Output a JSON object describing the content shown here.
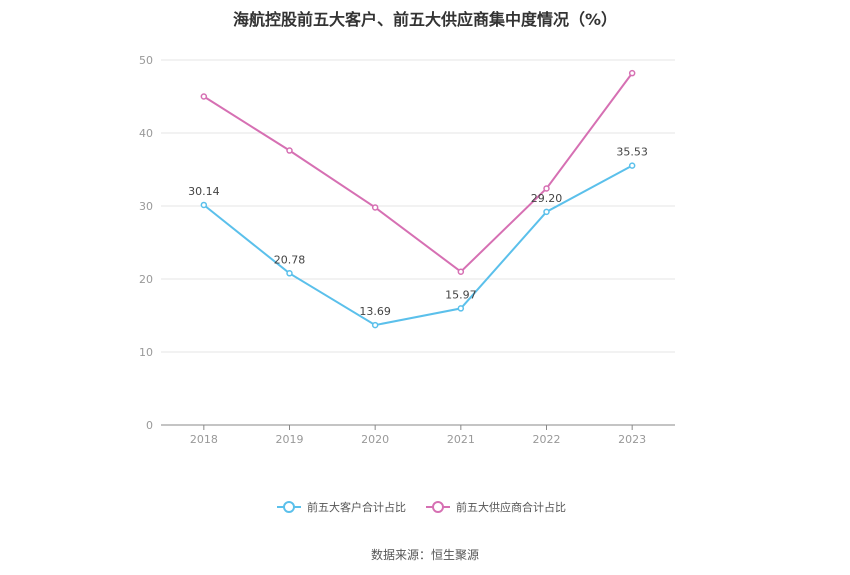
{
  "chart_data": {
    "type": "line",
    "title": "海航控股前五大客户、前五大供应商集中度情况（%）",
    "categories": [
      "2018",
      "2019",
      "2020",
      "2021",
      "2022",
      "2023"
    ],
    "ylim": [
      0,
      50
    ],
    "yticks": [
      0,
      10,
      20,
      30,
      40,
      50
    ],
    "series": [
      {
        "name": "前五大客户合计占比",
        "color": "#5bc0eb",
        "values": [
          30.14,
          20.78,
          13.69,
          15.97,
          29.2,
          35.53
        ],
        "labels": [
          "30.14",
          "20.78",
          "13.69",
          "15.97",
          "29.20",
          "35.53"
        ]
      },
      {
        "name": "前五大供应商合计占比",
        "color": "#d670b3",
        "values": [
          45.0,
          37.6,
          29.8,
          21.0,
          32.4,
          48.2
        ],
        "labels": []
      }
    ],
    "grid": true,
    "legend_position": "bottom"
  },
  "source": "数据来源：恒生聚源"
}
